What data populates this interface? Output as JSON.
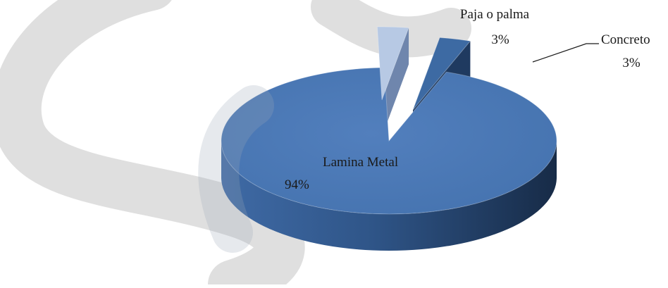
{
  "chart_data": {
    "type": "pie",
    "three_d": true,
    "exploded_slices": [
      "Paja o palma",
      "Concreto"
    ],
    "slices": [
      {
        "label": "Lamina Metal",
        "value": 94,
        "value_label": "94%",
        "color": "#4a78b6"
      },
      {
        "label": "Paja o palma",
        "value": 3,
        "value_label": "3%",
        "color": "#b7c9e4"
      },
      {
        "label": "Concreto",
        "value": 3,
        "value_label": "3%",
        "color": "#3d6aa3"
      }
    ],
    "legend": false,
    "watermark": {
      "text": "S",
      "color": "#d9d9d9"
    }
  }
}
